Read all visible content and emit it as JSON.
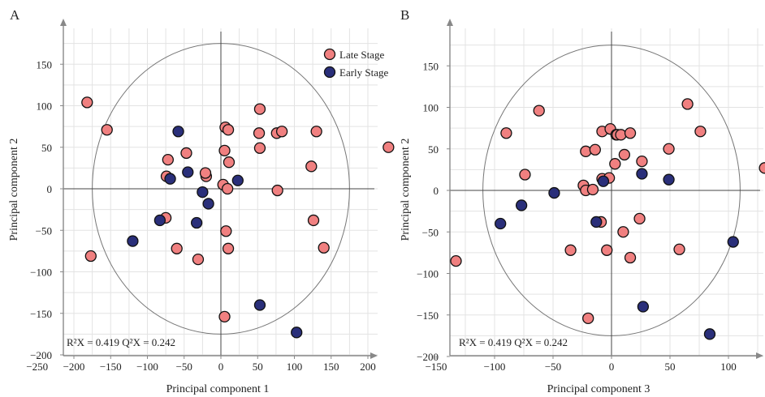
{
  "colors": {
    "late": "#F08080",
    "early": "#2A2F7A"
  },
  "legend": [
    {
      "label": "Late Stage",
      "color": "#F08080"
    },
    {
      "label": "Early Stage",
      "color": "#2A2F7A"
    }
  ],
  "chart_data": [
    {
      "type": "scatter",
      "panel": "A",
      "xlabel": "Principal component 1",
      "ylabel": "Principal component 2",
      "xlim": [
        -250,
        240
      ],
      "ylim": [
        -200,
        195
      ],
      "xticks": [
        -250,
        -200,
        -150,
        -100,
        -50,
        0,
        50,
        100,
        150,
        200
      ],
      "xtick_labels": [
        "−250",
        "−200",
        "−150",
        "−100",
        "−50",
        "0",
        "50",
        "100",
        "150",
        "200"
      ],
      "yticks": [
        -200,
        -150,
        -100,
        -50,
        0,
        50,
        100,
        150
      ],
      "ytick_labels": [
        "−200",
        "−150",
        "−100",
        "−50",
        "0",
        "50",
        "100",
        "150"
      ],
      "grid": true,
      "ellipse": {
        "rx": 175,
        "ry": 175
      },
      "stat_text": "R²X = 0.419 Q²X = 0.242",
      "legend_position": "top-right",
      "series": [
        {
          "name": "Late Stage",
          "color": "#F08080",
          "points": [
            [
              -182,
              104
            ],
            [
              -155,
              71
            ],
            [
              -177,
              -81
            ],
            [
              -72,
              35
            ],
            [
              -74,
              15
            ],
            [
              -47,
              43
            ],
            [
              -75,
              -35
            ],
            [
              -60,
              -72
            ],
            [
              -31,
              -85
            ],
            [
              -20,
              15
            ],
            [
              -21,
              19
            ],
            [
              3,
              5
            ],
            [
              5,
              46
            ],
            [
              6,
              74
            ],
            [
              10,
              71
            ],
            [
              11,
              32
            ],
            [
              9,
              0
            ],
            [
              7,
              -51
            ],
            [
              10,
              -72
            ],
            [
              5,
              -154
            ],
            [
              52,
              67
            ],
            [
              53,
              96
            ],
            [
              53,
              49
            ],
            [
              76,
              67
            ],
            [
              83,
              69
            ],
            [
              77,
              -2
            ],
            [
              123,
              27
            ],
            [
              126,
              -38
            ],
            [
              130,
              69
            ],
            [
              140,
              -71
            ],
            [
              228,
              50
            ]
          ]
        },
        {
          "name": "Early Stage",
          "color": "#2A2F7A",
          "points": [
            [
              -58,
              69
            ],
            [
              -69,
              12
            ],
            [
              -45,
              20
            ],
            [
              -25,
              -4
            ],
            [
              -17,
              -18
            ],
            [
              23,
              10
            ],
            [
              -33,
              -41
            ],
            [
              -83,
              -38
            ],
            [
              -120,
              -63
            ],
            [
              53,
              -140
            ],
            [
              103,
              -173
            ]
          ]
        }
      ]
    },
    {
      "type": "scatter",
      "panel": "B",
      "xlabel": "Principal component 3",
      "ylabel": "Principal component 2",
      "xlim": [
        -150,
        137
      ],
      "ylim": [
        -200,
        195
      ],
      "xticks": [
        -150,
        -100,
        -50,
        0,
        50,
        100
      ],
      "xtick_labels": [
        "−150",
        "−100",
        "−50",
        "0",
        "50",
        "100"
      ],
      "yticks": [
        -200,
        -150,
        -100,
        -50,
        0,
        50,
        100,
        150
      ],
      "ytick_labels": [
        "−200",
        "−150",
        "−100",
        "−50",
        "0",
        "50",
        "100",
        "150"
      ],
      "grid": true,
      "ellipse": {
        "rx": 110,
        "ry": 175
      },
      "stat_text": "R²X = 0.419 Q²X = 0.242",
      "series": [
        {
          "name": "Late Stage",
          "color": "#F08080",
          "points": [
            [
              -62,
              96
            ],
            [
              -90,
              69
            ],
            [
              -74,
              19
            ],
            [
              -24,
              6
            ],
            [
              -22,
              47
            ],
            [
              -14,
              49
            ],
            [
              -22,
              0
            ],
            [
              -16,
              1
            ],
            [
              -8,
              14
            ],
            [
              -8,
              71
            ],
            [
              -1,
              74
            ],
            [
              4,
              67
            ],
            [
              5,
              67
            ],
            [
              8,
              67
            ],
            [
              11,
              43
            ],
            [
              16,
              69
            ],
            [
              24,
              -34
            ],
            [
              26,
              35
            ],
            [
              49,
              50
            ],
            [
              65,
              104
            ],
            [
              76,
              71
            ],
            [
              131,
              27
            ],
            [
              -35,
              -72
            ],
            [
              -9,
              -38
            ],
            [
              10,
              -50
            ],
            [
              58,
              -71
            ],
            [
              -4,
              -72
            ],
            [
              16,
              -81
            ],
            [
              -20,
              -154
            ],
            [
              -133,
              -85
            ],
            [
              -2,
              15
            ],
            [
              3,
              32
            ]
          ]
        },
        {
          "name": "Early Stage",
          "color": "#2A2F7A",
          "points": [
            [
              -95,
              -40
            ],
            [
              -77,
              -18
            ],
            [
              -49,
              -3
            ],
            [
              -13,
              -38
            ],
            [
              -7,
              11
            ],
            [
              26,
              20
            ],
            [
              49,
              13
            ],
            [
              104,
              -62
            ],
            [
              27,
              -140
            ],
            [
              84,
              -173
            ]
          ]
        }
      ]
    }
  ]
}
